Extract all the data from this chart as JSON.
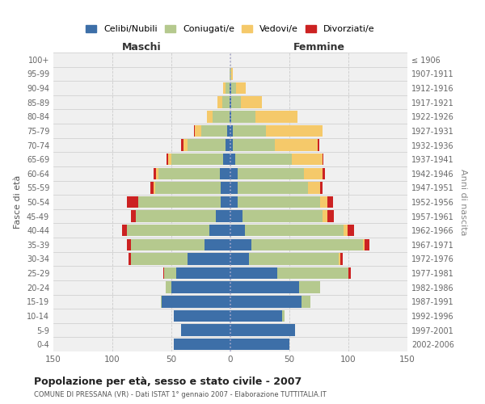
{
  "age_groups": [
    "0-4",
    "5-9",
    "10-14",
    "15-19",
    "20-24",
    "25-29",
    "30-34",
    "35-39",
    "40-44",
    "45-49",
    "50-54",
    "55-59",
    "60-64",
    "65-69",
    "70-74",
    "75-79",
    "80-84",
    "85-89",
    "90-94",
    "95-99",
    "100+"
  ],
  "birth_years": [
    "2002-2006",
    "1997-2001",
    "1992-1996",
    "1987-1991",
    "1982-1986",
    "1977-1981",
    "1972-1976",
    "1967-1971",
    "1962-1966",
    "1957-1961",
    "1952-1956",
    "1947-1951",
    "1942-1946",
    "1937-1941",
    "1932-1936",
    "1927-1931",
    "1922-1926",
    "1917-1921",
    "1912-1916",
    "1907-1911",
    "≤ 1906"
  ],
  "colors": {
    "celibe": "#3d6fa8",
    "coniugato": "#b5c98e",
    "vedovo": "#f5c96a",
    "divorziato": "#cc2222"
  },
  "maschi": {
    "celibe": [
      48,
      42,
      48,
      58,
      50,
      46,
      36,
      22,
      18,
      12,
      8,
      8,
      9,
      6,
      4,
      3,
      1,
      1,
      1,
      0,
      0
    ],
    "coniugato": [
      0,
      0,
      0,
      1,
      5,
      10,
      48,
      62,
      70,
      68,
      70,
      56,
      52,
      44,
      32,
      22,
      14,
      6,
      3,
      1,
      0
    ],
    "vedovo": [
      0,
      0,
      0,
      0,
      0,
      0,
      0,
      0,
      0,
      0,
      0,
      1,
      2,
      3,
      4,
      5,
      5,
      4,
      2,
      0,
      0
    ],
    "divorziato": [
      0,
      0,
      0,
      0,
      0,
      1,
      2,
      4,
      4,
      4,
      10,
      3,
      2,
      1,
      2,
      1,
      0,
      0,
      0,
      0,
      0
    ]
  },
  "femmine": {
    "nubile": [
      50,
      55,
      44,
      60,
      58,
      40,
      16,
      18,
      12,
      10,
      6,
      6,
      6,
      4,
      2,
      2,
      1,
      1,
      1,
      0,
      0
    ],
    "coniugata": [
      0,
      0,
      2,
      8,
      18,
      60,
      76,
      94,
      84,
      68,
      70,
      60,
      56,
      48,
      36,
      28,
      20,
      8,
      4,
      1,
      0
    ],
    "vedova": [
      0,
      0,
      0,
      0,
      0,
      0,
      1,
      2,
      3,
      4,
      6,
      10,
      16,
      26,
      36,
      48,
      36,
      18,
      8,
      1,
      0
    ],
    "divorziata": [
      0,
      0,
      0,
      0,
      0,
      2,
      2,
      4,
      6,
      6,
      5,
      2,
      2,
      1,
      1,
      0,
      0,
      0,
      0,
      0,
      0
    ]
  },
  "xlim": 150,
  "title": "Popolazione per età, sesso e stato civile - 2007",
  "subtitle": "COMUNE DI PRESSANA (VR) - Dati ISTAT 1° gennaio 2007 - Elaborazione TUTTITALIA.IT",
  "xlabel_left": "Maschi",
  "xlabel_right": "Femmine",
  "ylabel": "Fasce di età",
  "ylabel_right": "Anni di nascita",
  "legend_labels": [
    "Celibi/Nubili",
    "Coniugati/e",
    "Vedovi/e",
    "Divorziati/e"
  ],
  "bg_color": "#ffffff",
  "plot_bg": "#f0f0f0",
  "grid_color": "#cccccc"
}
